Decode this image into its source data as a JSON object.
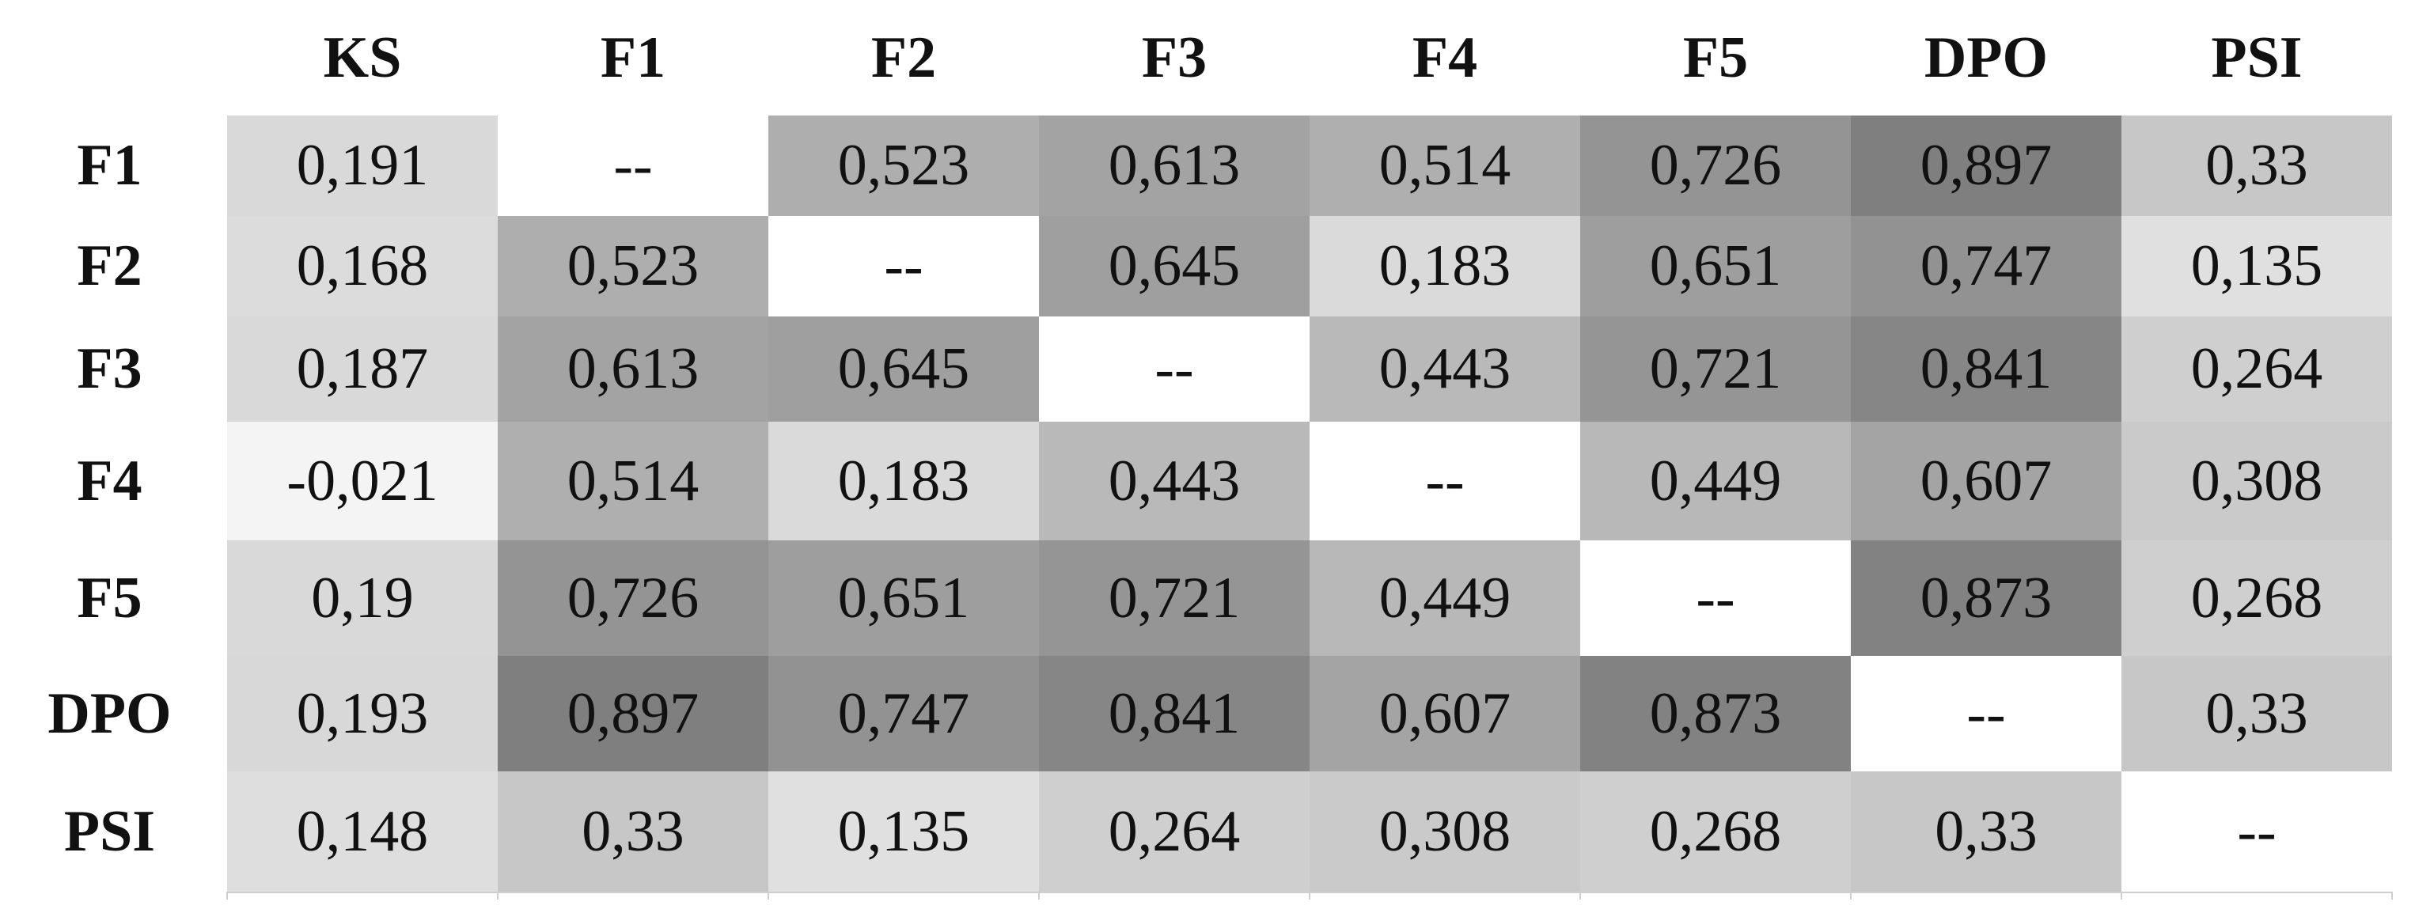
{
  "table": {
    "columns": [
      "KS",
      "F1",
      "F2",
      "F3",
      "F4",
      "F5",
      "DPO",
      "PSI"
    ],
    "rows": [
      {
        "label": "F1",
        "cells": [
          "0,191",
          "--",
          "0,523",
          "0,613",
          "0,514",
          "0,726",
          "0,897",
          "0,33"
        ]
      },
      {
        "label": "F2",
        "cells": [
          "0,168",
          "0,523",
          "--",
          "0,645",
          "0,183",
          "0,651",
          "0,747",
          "0,135"
        ]
      },
      {
        "label": "F3",
        "cells": [
          "0,187",
          "0,613",
          "0,645",
          "--",
          "0,443",
          "0,721",
          "0,841",
          "0,264"
        ]
      },
      {
        "label": "F4",
        "cells": [
          "-0,021",
          "0,514",
          "0,183",
          "0,443",
          "--",
          "0,449",
          "0,607",
          "0,308"
        ]
      },
      {
        "label": "F5",
        "cells": [
          "0,19",
          "0,726",
          "0,651",
          "0,721",
          "0,449",
          "--",
          "0,873",
          "0,268"
        ]
      },
      {
        "label": "DPO",
        "cells": [
          "0,193",
          "0,897",
          "0,747",
          "0,841",
          "0,607",
          "0,873",
          "--",
          "0,33"
        ]
      },
      {
        "label": "PSI",
        "cells": [
          "0,148",
          "0,33",
          "0,135",
          "0,264",
          "0,308",
          "0,268",
          "0,33",
          "--"
        ]
      }
    ]
  }
}
